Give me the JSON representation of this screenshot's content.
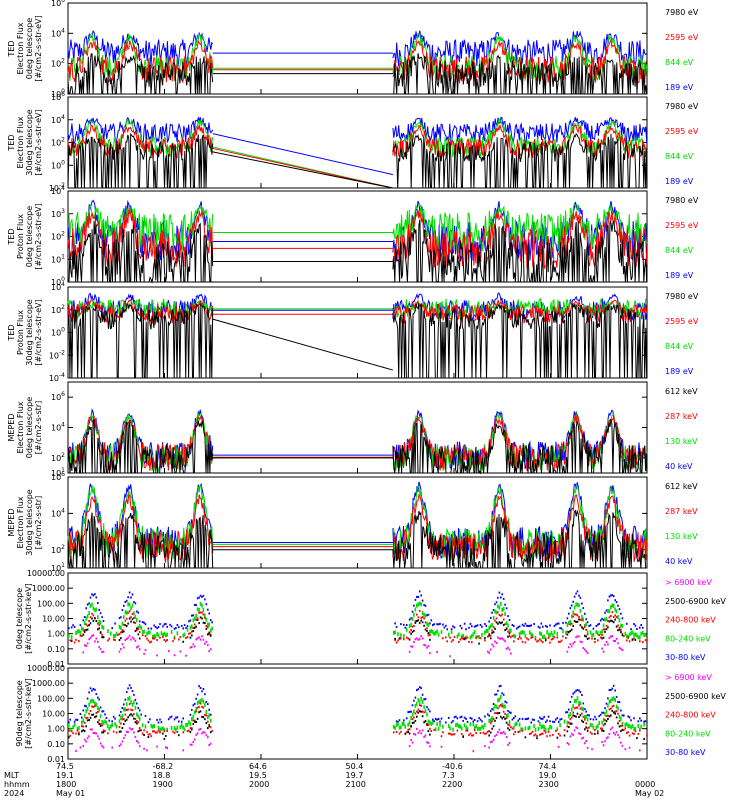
{
  "colors": {
    "black": "#000000",
    "blue": "#0000ff",
    "red": "#ff0000",
    "green": "#00dd00",
    "magenta": "#ff00ff"
  },
  "chart_data": [
    {
      "type": "line",
      "ylabel": [
        "TED",
        "Electron Flux",
        "0deg telescope",
        "[#/cm2-s-str-eV]"
      ],
      "y_scale": "log",
      "ylim": [
        1,
        1000000
      ],
      "yticks": [
        {
          "v": 1,
          "label": "10^0"
        },
        {
          "v": 100,
          "label": "10^2"
        },
        {
          "v": 10000,
          "label": "10^4"
        },
        {
          "v": 1000000,
          "label": "10^6"
        }
      ],
      "series": [
        {
          "name": "7980 eV",
          "color": "black"
        },
        {
          "name": "2595 eV",
          "color": "red"
        },
        {
          "name": "844 eV",
          "color": "green"
        },
        {
          "name": "189 eV",
          "color": "blue"
        }
      ],
      "levels": [
        {
          "quiet": 22,
          "burst": 250
        },
        {
          "quiet": 40,
          "burst": 2000
        },
        {
          "quiet": 50,
          "burst": 5000
        },
        {
          "quiet": 500,
          "burst": 8000
        }
      ]
    },
    {
      "type": "line",
      "ylabel": [
        "TED",
        "Electron Flux",
        "30deg telescope",
        "[#/cm2-s-str-eV]"
      ],
      "y_scale": "log",
      "ylim": [
        0.01,
        1000000
      ],
      "yticks": [
        {
          "v": 0.01,
          "label": "10^-2"
        },
        {
          "v": 1,
          "label": "10^0"
        },
        {
          "v": 100,
          "label": "10^2"
        },
        {
          "v": 10000,
          "label": "10^4"
        },
        {
          "v": 1000000,
          "label": "10^6"
        }
      ],
      "series": [
        {
          "name": "7980 eV",
          "color": "black"
        },
        {
          "name": "2595 eV",
          "color": "red"
        },
        {
          "name": "844 eV",
          "color": "green"
        },
        {
          "name": "189 eV",
          "color": "blue"
        }
      ],
      "levels": [
        {
          "quiet": 15,
          "burst": 300
        },
        {
          "quiet": 30,
          "burst": 2000
        },
        {
          "quiet": 40,
          "burst": 6000
        },
        {
          "quiet": 600,
          "burst": 9000
        }
      ]
    },
    {
      "type": "line",
      "ylabel": [
        "TED",
        "Proton Flux",
        "0deg telescope",
        "[#/cm2-s-str-eV]"
      ],
      "y_scale": "log",
      "ylim": [
        1,
        10000
      ],
      "yticks": [
        {
          "v": 1,
          "label": "10^0"
        },
        {
          "v": 10,
          "label": "10^1"
        },
        {
          "v": 100,
          "label": "10^2"
        },
        {
          "v": 1000,
          "label": "10^3"
        },
        {
          "v": 10000,
          "label": "10^4"
        }
      ],
      "series": [
        {
          "name": "7980 eV",
          "color": "black"
        },
        {
          "name": "2595 eV",
          "color": "red"
        },
        {
          "name": "844 eV",
          "color": "green"
        },
        {
          "name": "189 eV",
          "color": "blue"
        }
      ],
      "levels": [
        {
          "quiet": 8,
          "burst": 300
        },
        {
          "quiet": 30,
          "burst": 800
        },
        {
          "quiet": 150,
          "burst": 1500
        },
        {
          "quiet": 60,
          "burst": 2000
        }
      ]
    },
    {
      "type": "line",
      "ylabel": [
        "TED",
        "Proton Flux",
        "30deg telescope",
        "[#/cm2-s-str-eV]"
      ],
      "y_scale": "log",
      "ylim": [
        0.0001,
        10000
      ],
      "yticks": [
        {
          "v": 0.0001,
          "label": "10^-4"
        },
        {
          "v": 0.01,
          "label": "10^-2"
        },
        {
          "v": 1,
          "label": "10^0"
        },
        {
          "v": 100,
          "label": "10^2"
        },
        {
          "v": 10000,
          "label": "10^4"
        }
      ],
      "series": [
        {
          "name": "7980 eV",
          "color": "black"
        },
        {
          "name": "2595 eV",
          "color": "red"
        },
        {
          "name": "844 eV",
          "color": "green"
        },
        {
          "name": "189 eV",
          "color": "blue"
        }
      ],
      "levels": [
        {
          "quiet": 15,
          "burst": 200
        },
        {
          "quiet": 40,
          "burst": 400
        },
        {
          "quiet": 120,
          "burst": 300
        },
        {
          "quiet": 90,
          "burst": 1500
        }
      ]
    },
    {
      "type": "line",
      "ylabel": [
        "MEPED",
        "Electron Flux",
        "0deg telescope",
        "[#/cm2-s-str]"
      ],
      "y_scale": "log",
      "ylim": [
        10,
        10000000
      ],
      "yticks": [
        {
          "v": 10,
          "label": "10^1"
        },
        {
          "v": 100,
          "label": "10^2"
        },
        {
          "v": 10000,
          "label": "10^4"
        },
        {
          "v": 1000000,
          "label": "10^6"
        }
      ],
      "series": [
        {
          "name": "612 keV",
          "color": "black"
        },
        {
          "name": "287 keV",
          "color": "red"
        },
        {
          "name": "130 keV",
          "color": "green"
        },
        {
          "name": "40 keV",
          "color": "blue"
        }
      ],
      "levels": [
        {
          "quiet": 100,
          "burst": 20000
        },
        {
          "quiet": 110,
          "burst": 40000
        },
        {
          "quiet": 100,
          "burst": 50000
        },
        {
          "quiet": 150,
          "burst": 80000
        }
      ]
    },
    {
      "type": "line",
      "ylabel": [
        "MEPED",
        "Electron Flux",
        "30deg telescope",
        "[#/cm2-s-str]"
      ],
      "y_scale": "log",
      "ylim": [
        10,
        1000000
      ],
      "yticks": [
        {
          "v": 10,
          "label": "10^1"
        },
        {
          "v": 100,
          "label": "10^2"
        },
        {
          "v": 10000,
          "label": "10^4"
        },
        {
          "v": 1000000,
          "label": "10^6"
        }
      ],
      "series": [
        {
          "name": "612 keV",
          "color": "black"
        },
        {
          "name": "287 keV",
          "color": "red"
        },
        {
          "name": "130 keV",
          "color": "green"
        },
        {
          "name": "40 keV",
          "color": "blue"
        }
      ],
      "levels": [
        {
          "quiet": 100,
          "burst": 8000
        },
        {
          "quiet": 150,
          "burst": 60000
        },
        {
          "quiet": 200,
          "burst": 200000
        },
        {
          "quiet": 250,
          "burst": 300000
        }
      ]
    },
    {
      "type": "scatter",
      "ylabel": [
        "0deg telescope",
        "[#/cm2-s-str-keV]"
      ],
      "y_scale": "log",
      "ylim": [
        0.01,
        10000
      ],
      "yticks": [
        {
          "v": 10000,
          "label": "10000.00"
        },
        {
          "v": 1000,
          "label": "1000.00"
        },
        {
          "v": 100,
          "label": "100.00"
        },
        {
          "v": 10,
          "label": "10.00"
        },
        {
          "v": 1,
          "label": "1.00"
        },
        {
          "v": 0.1,
          "label": "0.10"
        },
        {
          "v": 0.01,
          "label": "0.01"
        }
      ],
      "series": [
        {
          "name": "> 6900 keV",
          "color": "magenta"
        },
        {
          "name": "2500-6900 keV",
          "color": "black"
        },
        {
          "name": "240-800 keV",
          "color": "red"
        },
        {
          "name": "80-240 keV",
          "color": "green"
        },
        {
          "name": "30-80 keV",
          "color": "blue"
        }
      ],
      "levels": [
        {
          "quiet": 0.05,
          "burst": 0.5
        },
        {
          "quiet": 0.3,
          "burst": 8
        },
        {
          "quiet": 0.4,
          "burst": 20
        },
        {
          "quiet": 1,
          "burst": 80
        },
        {
          "quiet": 3,
          "burst": 400
        }
      ]
    },
    {
      "type": "scatter",
      "ylabel": [
        "90deg telescope",
        "[#/cm2-s-str-keV]"
      ],
      "y_scale": "log",
      "ylim": [
        0.01,
        10000
      ],
      "yticks": [
        {
          "v": 10000,
          "label": "10000.00"
        },
        {
          "v": 1000,
          "label": "1000.00"
        },
        {
          "v": 100,
          "label": "100.00"
        },
        {
          "v": 10,
          "label": "10.00"
        },
        {
          "v": 1,
          "label": "1.00"
        },
        {
          "v": 0.1,
          "label": "0.10"
        },
        {
          "v": 0.01,
          "label": "0.01"
        }
      ],
      "series": [
        {
          "name": "> 6900 keV",
          "color": "magenta"
        },
        {
          "name": "2500-6900 keV",
          "color": "black"
        },
        {
          "name": "240-800 keV",
          "color": "red"
        },
        {
          "name": "80-240 keV",
          "color": "green"
        },
        {
          "name": "30-80 keV",
          "color": "blue"
        }
      ],
      "levels": [
        {
          "quiet": 0.05,
          "burst": 0.8
        },
        {
          "quiet": 0.3,
          "burst": 10
        },
        {
          "quiet": 0.5,
          "burst": 30
        },
        {
          "quiet": 1.5,
          "burst": 100
        },
        {
          "quiet": 4,
          "burst": 500
        }
      ]
    }
  ],
  "x_axis": {
    "time_range_hhmm": [
      "1800",
      "0000"
    ],
    "row_labels": [
      "MLT",
      "hhmm",
      "2024"
    ],
    "ticks": [
      {
        "lat": "74.5",
        "mlt": "19.1",
        "hhmm": "1800",
        "date": "May 01"
      },
      {
        "lat": "-68.2",
        "mlt": "18.8",
        "hhmm": "1900",
        "date": ""
      },
      {
        "lat": "64.6",
        "mlt": "19.5",
        "hhmm": "2000",
        "date": ""
      },
      {
        "lat": "50.4",
        "mlt": "19.7",
        "hhmm": "2100",
        "date": ""
      },
      {
        "lat": "-40.6",
        "mlt": "7.3",
        "hhmm": "2200",
        "date": ""
      },
      {
        "lat": "74.4",
        "mlt": "19.0",
        "hhmm": "2300",
        "date": ""
      },
      {
        "lat": "",
        "mlt": "",
        "hhmm": "0000",
        "date": "May 02"
      }
    ]
  }
}
